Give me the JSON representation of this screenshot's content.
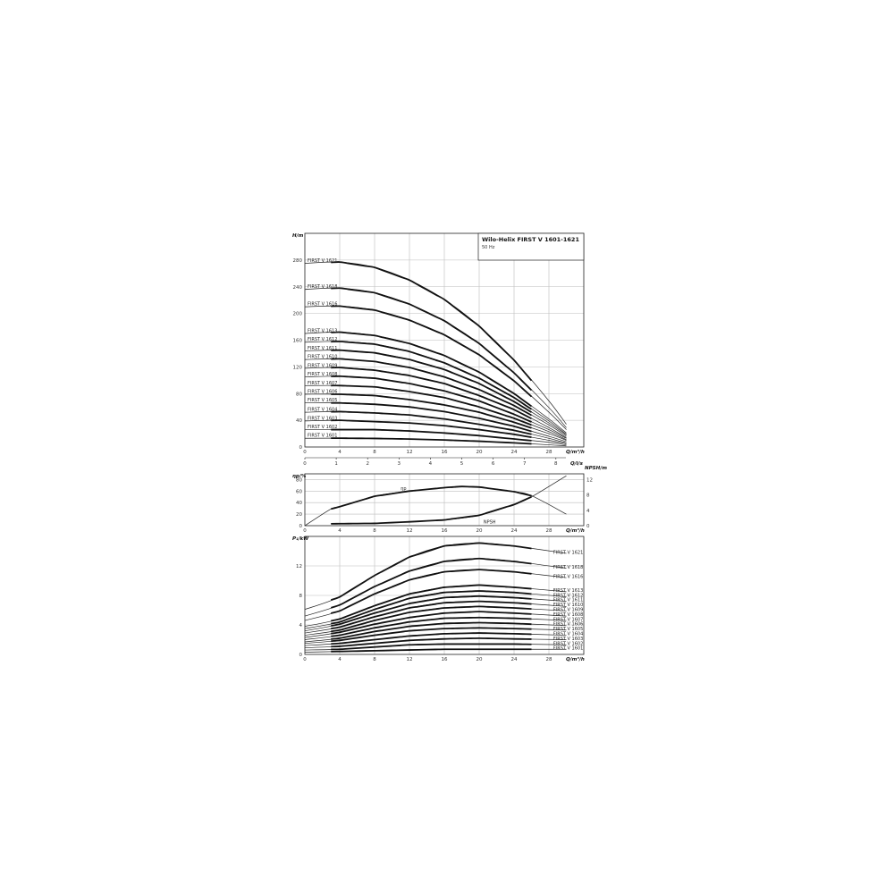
{
  "chart_data": [
    {
      "type": "line",
      "title": "Wilo-Helix FIRST V 1601-1621",
      "subtitle": "50 Hz",
      "xlabel": "Q/m³/h",
      "x2label": "Q/l/s",
      "ylabel": "H/m",
      "xlim": [
        0,
        32
      ],
      "ylim": [
        0,
        320
      ],
      "xticks": [
        0,
        4,
        8,
        12,
        16,
        20,
        24,
        28
      ],
      "x2ticks": [
        0,
        1,
        2,
        3,
        4,
        5,
        6,
        7,
        8
      ],
      "yticks": [
        0,
        40,
        80,
        120,
        160,
        200,
        240,
        280
      ],
      "grid": true,
      "x": [
        0,
        4,
        8,
        12,
        16,
        20,
        24,
        28,
        30
      ],
      "series": [
        {
          "name": "FIRST V 1621",
          "values": [
            275,
            277,
            269,
            250,
            221,
            181,
            130,
            69,
            34
          ]
        },
        {
          "name": "FIRST V 1618",
          "values": [
            236,
            238,
            231,
            214,
            189,
            155,
            111,
            59,
            29
          ]
        },
        {
          "name": "FIRST V 1616",
          "values": [
            210,
            211,
            205,
            190,
            168,
            138,
            99,
            52,
            26
          ]
        },
        {
          "name": "FIRST V 1613",
          "values": [
            170,
            172,
            167,
            155,
            137,
            112,
            80,
            42,
            21
          ]
        },
        {
          "name": "FIRST V 1612",
          "values": [
            157,
            158,
            154,
            143,
            126,
            103,
            74,
            39,
            19
          ]
        },
        {
          "name": "FIRST V 1611",
          "values": [
            144,
            145,
            141,
            131,
            116,
            95,
            68,
            36,
            18
          ]
        },
        {
          "name": "FIRST V 1610",
          "values": [
            131,
            132,
            128,
            119,
            105,
            86,
            62,
            33,
            16
          ]
        },
        {
          "name": "FIRST V 1609",
          "values": [
            118,
            119,
            115,
            107,
            95,
            77,
            56,
            29,
            14
          ]
        },
        {
          "name": "FIRST V 1608",
          "values": [
            105,
            106,
            103,
            95,
            84,
            69,
            49,
            26,
            13
          ]
        },
        {
          "name": "FIRST V 1607",
          "values": [
            92,
            92,
            90,
            83,
            74,
            60,
            43,
            23,
            11
          ]
        },
        {
          "name": "FIRST V 1606",
          "values": [
            79,
            79,
            77,
            71,
            63,
            52,
            37,
            20,
            10
          ]
        },
        {
          "name": "FIRST V 1605",
          "values": [
            66,
            66,
            64,
            60,
            53,
            43,
            31,
            16,
            8
          ]
        },
        {
          "name": "FIRST V 1604",
          "values": [
            52,
            53,
            51,
            48,
            42,
            34,
            25,
            13,
            6
          ]
        },
        {
          "name": "FIRST V 1603",
          "values": [
            39,
            40,
            38,
            36,
            32,
            26,
            19,
            10,
            5
          ]
        },
        {
          "name": "FIRST V 1602",
          "values": [
            26,
            26,
            26,
            24,
            21,
            17,
            12,
            7,
            3
          ]
        },
        {
          "name": "FIRST V 1601",
          "values": [
            13.1,
            13.2,
            12.8,
            11.9,
            10.5,
            8.6,
            6.2,
            3.3,
            1.6
          ]
        }
      ]
    },
    {
      "type": "line",
      "xlabel": "Q/m³/h",
      "ylabel": "ηp/%",
      "y2label": "NPSH/m",
      "xlim": [
        0,
        32
      ],
      "ylim": [
        0,
        90
      ],
      "y2lim": [
        0,
        13.5
      ],
      "xticks": [
        0,
        4,
        8,
        12,
        16,
        20,
        24,
        28
      ],
      "yticks": [
        0,
        20,
        40,
        60,
        80
      ],
      "y2ticks": [
        0,
        4,
        8,
        12
      ],
      "grid": true,
      "series": [
        {
          "name": "ηp",
          "axis": "left",
          "x": [
            0,
            3,
            4,
            8,
            12,
            16,
            18,
            20,
            24,
            26,
            30
          ],
          "values": [
            0,
            29,
            33,
            51,
            60,
            66,
            68,
            67,
            59,
            52,
            20
          ]
        },
        {
          "name": "NPSH",
          "axis": "right",
          "x": [
            3,
            8,
            12,
            16,
            20,
            24,
            26,
            30
          ],
          "values": [
            0.5,
            0.6,
            1,
            1.5,
            2.7,
            5.5,
            7.5,
            13
          ]
        }
      ]
    },
    {
      "type": "line",
      "xlabel": "Q/m³/h",
      "ylabel": "P₁/kW",
      "xlim": [
        0,
        32
      ],
      "ylim": [
        0,
        16
      ],
      "xticks": [
        0,
        4,
        8,
        12,
        16,
        20,
        24,
        28
      ],
      "yticks": [
        0,
        4,
        8,
        12
      ],
      "grid": true,
      "x": [
        0,
        4,
        8,
        12,
        16,
        20,
        24,
        30
      ],
      "series": [
        {
          "name": "FIRST V 1621",
          "values": [
            6.1,
            7.8,
            10.7,
            13.2,
            14.7,
            15.1,
            14.7,
            13.7
          ]
        },
        {
          "name": "FIRST V 1618",
          "values": [
            5.2,
            6.7,
            9.2,
            11.3,
            12.6,
            13.0,
            12.6,
            11.7
          ]
        },
        {
          "name": "FIRST V 1616",
          "values": [
            4.6,
            5.9,
            8.2,
            10.1,
            11.2,
            11.5,
            11.2,
            10.4
          ]
        },
        {
          "name": "FIRST V 1613",
          "values": [
            3.8,
            4.8,
            6.6,
            8.2,
            9.1,
            9.4,
            9.1,
            8.5
          ]
        },
        {
          "name": "FIRST V 1612",
          "values": [
            3.5,
            4.4,
            6.1,
            7.6,
            8.4,
            8.6,
            8.4,
            7.8
          ]
        },
        {
          "name": "FIRST V 1611",
          "values": [
            3.2,
            4.1,
            5.6,
            6.9,
            7.7,
            7.9,
            7.7,
            7.2
          ]
        },
        {
          "name": "FIRST V 1610",
          "values": [
            2.9,
            3.7,
            5.1,
            6.3,
            7.0,
            7.2,
            7.0,
            6.5
          ]
        },
        {
          "name": "FIRST V 1609",
          "values": [
            2.6,
            3.3,
            4.6,
            5.7,
            6.3,
            6.5,
            6.3,
            5.9
          ]
        },
        {
          "name": "FIRST V 1608",
          "values": [
            2.3,
            3.0,
            4.1,
            5.0,
            5.6,
            5.8,
            5.6,
            5.2
          ]
        },
        {
          "name": "FIRST V 1607",
          "values": [
            2.0,
            2.6,
            3.6,
            4.4,
            4.9,
            5.0,
            4.9,
            4.6
          ]
        },
        {
          "name": "FIRST V 1606",
          "values": [
            1.7,
            2.2,
            3.1,
            3.8,
            4.2,
            4.3,
            4.2,
            3.9
          ]
        },
        {
          "name": "FIRST V 1605",
          "values": [
            1.5,
            1.9,
            2.6,
            3.2,
            3.5,
            3.6,
            3.5,
            3.3
          ]
        },
        {
          "name": "FIRST V 1604",
          "values": [
            1.2,
            1.5,
            2.0,
            2.5,
            2.8,
            2.9,
            2.8,
            2.6
          ]
        },
        {
          "name": "FIRST V 1603",
          "values": [
            0.9,
            1.1,
            1.5,
            1.9,
            2.1,
            2.2,
            2.1,
            2.0
          ]
        },
        {
          "name": "FIRST V 1602",
          "values": [
            0.6,
            0.7,
            1.0,
            1.3,
            1.4,
            1.4,
            1.4,
            1.3
          ]
        },
        {
          "name": "FIRST V 1601",
          "values": [
            0.3,
            0.4,
            0.5,
            0.6,
            0.7,
            0.7,
            0.7,
            0.7
          ]
        }
      ]
    }
  ]
}
